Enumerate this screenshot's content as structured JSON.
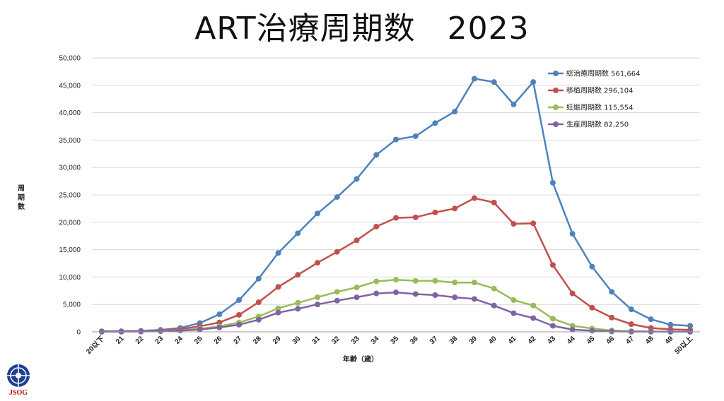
{
  "chart_data": {
    "type": "line",
    "title": "ART治療周期数　2023",
    "xlabel": "年齢（歳）",
    "ylabel": "周期数",
    "ylim": [
      0,
      50000
    ],
    "yticks": [
      0,
      5000,
      10000,
      15000,
      20000,
      25000,
      30000,
      35000,
      40000,
      45000,
      50000
    ],
    "ytick_labels": [
      "0",
      "5,000",
      "10,000",
      "15,000",
      "20,000",
      "25,000",
      "30,000",
      "35,000",
      "40,000",
      "45,000",
      "50,000"
    ],
    "grid": true,
    "legend_position": "top-right",
    "categories": [
      "20以下",
      "21",
      "22",
      "23",
      "24",
      "25",
      "26",
      "27",
      "28",
      "29",
      "30",
      "31",
      "32",
      "33",
      "34",
      "35",
      "36",
      "37",
      "38",
      "39",
      "40",
      "41",
      "42",
      "43",
      "44",
      "45",
      "46",
      "47",
      "48",
      "49",
      "50以上"
    ],
    "series": [
      {
        "name": "総治療周期数 561,664",
        "color": "#4f81bd",
        "values": [
          100,
          110,
          180,
          350,
          700,
          1600,
          3200,
          5800,
          9700,
          14400,
          18000,
          21600,
          24600,
          27900,
          32300,
          35100,
          35700,
          38100,
          40200,
          46200,
          45600,
          41500,
          45600,
          27200,
          17900,
          11900,
          7300,
          4100,
          2300,
          1300,
          1100
        ]
      },
      {
        "name": "移植周期数 296,104",
        "color": "#c0504d",
        "values": [
          50,
          60,
          110,
          250,
          500,
          1000,
          1700,
          3100,
          5400,
          8200,
          10400,
          12600,
          14600,
          16700,
          19200,
          20800,
          20900,
          21800,
          22500,
          24400,
          23600,
          19700,
          19800,
          12200,
          7000,
          4400,
          2600,
          1400,
          700,
          450,
          350
        ]
      },
      {
        "name": "妊娠周期数 115,554",
        "color": "#9bbb59",
        "values": [
          20,
          30,
          70,
          160,
          300,
          560,
          1000,
          1700,
          2800,
          4300,
          5300,
          6300,
          7300,
          8100,
          9200,
          9500,
          9300,
          9300,
          9000,
          9000,
          7900,
          5800,
          4800,
          2400,
          1100,
          600,
          250,
          100,
          50,
          30,
          20
        ]
      },
      {
        "name": "生産周期数 82,250",
        "color": "#8064a2",
        "values": [
          10,
          20,
          50,
          120,
          230,
          420,
          780,
          1300,
          2200,
          3500,
          4200,
          5000,
          5700,
          6300,
          7000,
          7200,
          6900,
          6700,
          6300,
          6000,
          4800,
          3400,
          2500,
          1100,
          400,
          200,
          80,
          30,
          20,
          10,
          10
        ]
      }
    ]
  },
  "logo": {
    "text": "JSOG"
  }
}
